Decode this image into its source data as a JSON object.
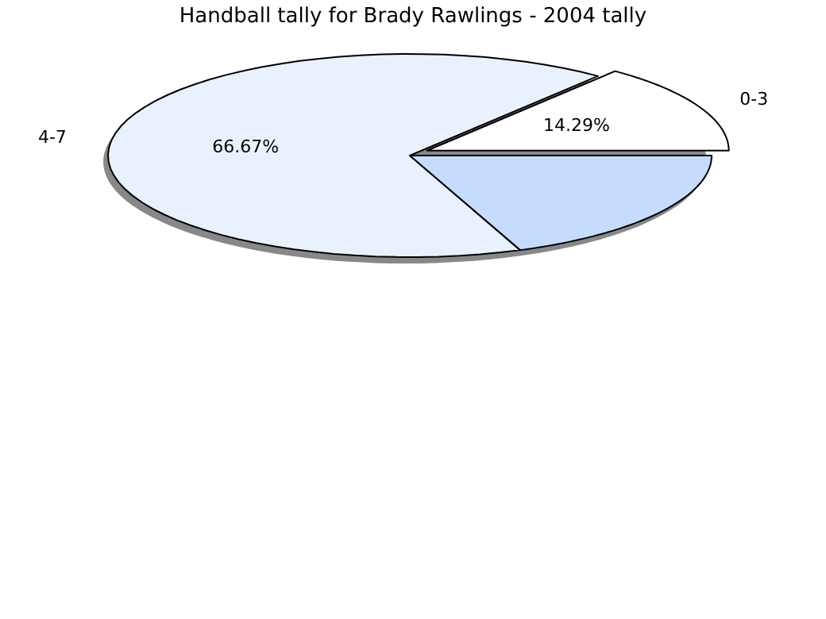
{
  "chart_data": {
    "type": "pie",
    "title": "Handball tally for Brady Rawlings - 2004 tally",
    "categories": [
      "0-3",
      "4-7",
      null
    ],
    "values": [
      14.29,
      66.67,
      19.04
    ],
    "colors": [
      "#ffffff",
      "#eaf1fe",
      "#c6dcff"
    ],
    "value_labels": [
      "14.29%",
      "66.67%",
      null
    ]
  }
}
